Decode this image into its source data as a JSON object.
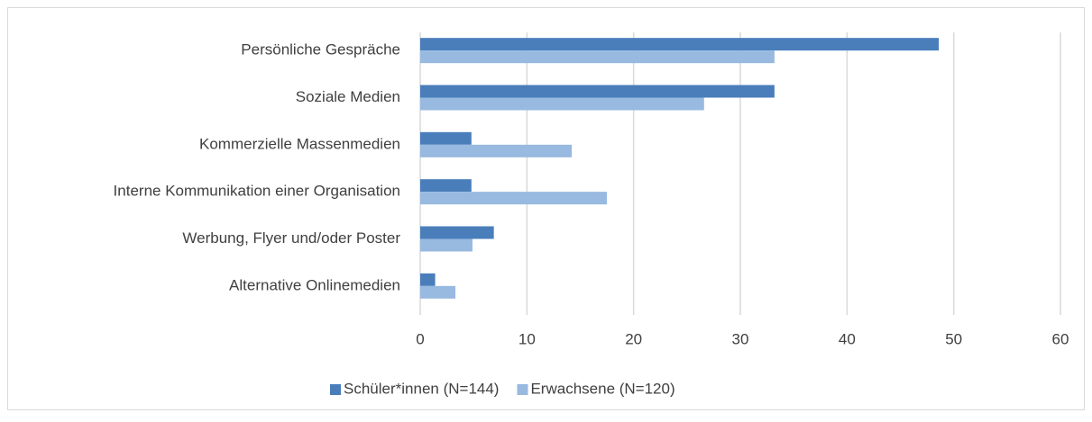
{
  "chart_data": {
    "type": "bar",
    "orientation": "horizontal",
    "categories": [
      "Persönliche Gespräche",
      "Soziale Medien",
      "Kommerzielle Massenmedien",
      "Interne Kommunikation einer Organisation",
      "Werbung, Flyer und/oder Poster",
      "Alternative Onlinemedien"
    ],
    "series": [
      {
        "name": "Schüler*innen (N=144)",
        "color": "#4a7ebb",
        "values": [
          48.6,
          33.2,
          4.8,
          4.8,
          6.9,
          1.4
        ]
      },
      {
        "name": "Erwachsene (N=120)",
        "color": "#98b9e0",
        "values": [
          33.2,
          26.6,
          14.2,
          17.5,
          4.9,
          3.3
        ]
      }
    ],
    "xlim": [
      0,
      60
    ],
    "xticks": [
      0,
      10,
      20,
      30,
      40,
      50,
      60
    ],
    "grid": true,
    "legend": "bottom"
  }
}
